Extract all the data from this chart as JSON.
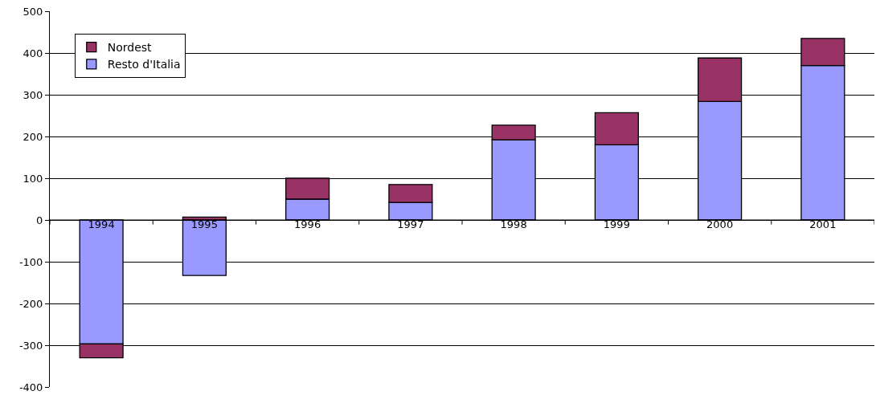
{
  "chart_data": {
    "type": "bar",
    "stacked": true,
    "categories": [
      "1994",
      "1995",
      "1996",
      "1997",
      "1998",
      "1999",
      "2000",
      "2001"
    ],
    "series": [
      {
        "name": "Resto d'Italia",
        "color": "#9999ff",
        "values": [
          -297,
          -133,
          50,
          42,
          192,
          180,
          284,
          370
        ]
      },
      {
        "name": "Nordest",
        "color": "#993366",
        "values": [
          -33,
          7,
          50,
          43,
          35,
          77,
          104,
          65
        ]
      }
    ],
    "ylim": [
      -400,
      500
    ],
    "yticks": [
      -400,
      -300,
      -200,
      -100,
      0,
      100,
      200,
      300,
      400,
      500
    ],
    "grid": "y",
    "legend": "top left"
  }
}
